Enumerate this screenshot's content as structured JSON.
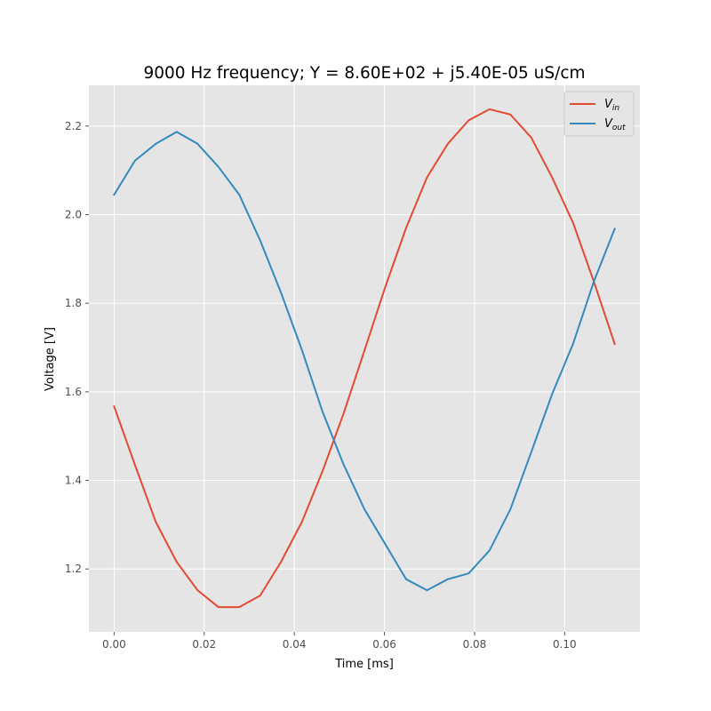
{
  "chart_data": {
    "type": "line",
    "title": "9000 Hz frequency; Y = 8.60E+02 + j5.40E-05 uS/cm",
    "xlabel": "Time [ms]",
    "ylabel": "Voltage [V]",
    "xlim": [
      -0.0056,
      0.1167
    ],
    "ylim": [
      1.058,
      2.292
    ],
    "xticks": [
      0.0,
      0.02,
      0.04,
      0.06,
      0.08,
      0.1
    ],
    "xtick_labels": [
      "0.00",
      "0.02",
      "0.04",
      "0.06",
      "0.08",
      "0.10"
    ],
    "yticks": [
      1.2,
      1.4,
      1.6,
      1.8,
      2.0,
      2.2
    ],
    "ytick_labels": [
      "1.2",
      "1.4",
      "1.6",
      "1.8",
      "2.0",
      "2.2"
    ],
    "grid": true,
    "legend_position": "top-right",
    "x": [
      0.0,
      0.00463,
      0.00926,
      0.01389,
      0.01852,
      0.02315,
      0.02778,
      0.03241,
      0.03704,
      0.04167,
      0.0463,
      0.05093,
      0.05556,
      0.06019,
      0.06481,
      0.06944,
      0.07407,
      0.0787,
      0.08333,
      0.08796,
      0.09259,
      0.09722,
      0.10185,
      0.10648,
      0.11111
    ],
    "series": [
      {
        "name_main": "V",
        "name_sub": "in",
        "color": "#E24A33",
        "values": [
          1.567,
          1.435,
          1.306,
          1.216,
          1.152,
          1.114,
          1.114,
          1.14,
          1.216,
          1.306,
          1.422,
          1.551,
          1.693,
          1.837,
          1.97,
          2.084,
          2.16,
          2.213,
          2.238,
          2.226,
          2.174,
          2.084,
          1.982,
          1.849,
          1.708
        ]
      },
      {
        "name_main": "V",
        "name_sub": "out",
        "color": "#348ABD",
        "values": [
          2.045,
          2.122,
          2.16,
          2.187,
          2.16,
          2.108,
          2.045,
          1.942,
          1.824,
          1.695,
          1.554,
          1.436,
          1.335,
          1.256,
          1.177,
          1.152,
          1.177,
          1.19,
          1.242,
          1.335,
          1.464,
          1.595,
          1.708,
          1.849,
          1.968
        ]
      }
    ]
  }
}
